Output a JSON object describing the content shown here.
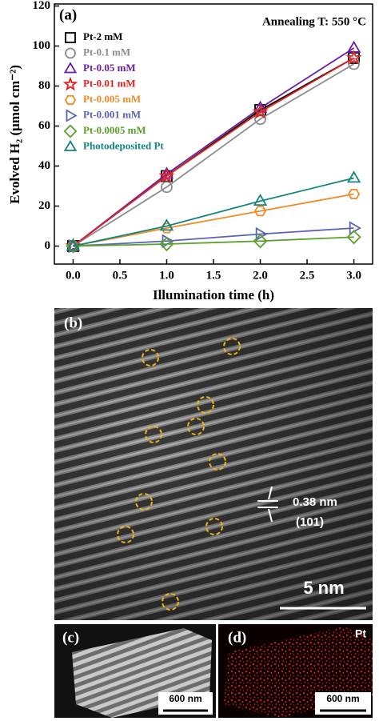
{
  "chart_data": {
    "type": "line",
    "panel_label": "(a)",
    "annotation": "Annealing T: 550 °C",
    "x_label": "Illumination time (h)",
    "y_label": "Evolved H₂ (μmol cm⁻²)",
    "x": [
      0,
      1,
      2,
      3
    ],
    "xlim": [
      -0.2,
      3.2
    ],
    "xticks": [
      {
        "value": 0,
        "label": "0.0"
      },
      {
        "value": 0.5,
        "label": "0.5"
      },
      {
        "value": 1,
        "label": "1.0"
      },
      {
        "value": 1.5,
        "label": "1.5"
      },
      {
        "value": 2,
        "label": "2.0"
      },
      {
        "value": 2.5,
        "label": "2.5"
      },
      {
        "value": 3,
        "label": "3.0"
      }
    ],
    "ylim": [
      -9,
      121
    ],
    "yticks": [
      0,
      20,
      40,
      60,
      80,
      100,
      120
    ],
    "legend": "upper left",
    "series": [
      {
        "name": "Pt-2 mM",
        "color": "#000000",
        "marker": "square",
        "values": [
          0,
          35,
          68,
          94
        ]
      },
      {
        "name": "Pt-0.1 mM",
        "color": "#8c8c8c",
        "marker": "circle",
        "values": [
          0,
          29.5,
          63.5,
          91
        ]
      },
      {
        "name": "Pt-0.05 mM",
        "color": "#6a1fa0",
        "marker": "triangle",
        "values": [
          0,
          36,
          69,
          99
        ]
      },
      {
        "name": "Pt-0.01 mM",
        "color": "#e32222",
        "marker": "star",
        "values": [
          0,
          35,
          67,
          94
        ]
      },
      {
        "name": "Pt-0.005 mM",
        "color": "#f08a24",
        "marker": "hexagon",
        "values": [
          0,
          9,
          17.5,
          26
        ]
      },
      {
        "name": "Pt-0.001 mM",
        "color": "#5a63b8",
        "marker": "triangle-right",
        "values": [
          0,
          2.5,
          6,
          9
        ]
      },
      {
        "name": "Pt-0.0005 mM",
        "color": "#5aa02c",
        "marker": "diamond",
        "values": [
          0,
          1,
          2.5,
          4.5
        ]
      },
      {
        "name": "Photodeposited Pt",
        "color": "#12857f",
        "marker": "triangle",
        "values": [
          0,
          10,
          22.5,
          34
        ]
      }
    ]
  },
  "panels": {
    "b": {
      "label": "(b)",
      "spacing": "0.38 nm",
      "plane": "(101)",
      "scale": "5 nm"
    },
    "c": {
      "label": "(c)",
      "scale": "600 nm"
    },
    "d": {
      "label": "(d)",
      "element": "Pt",
      "scale": "600 nm"
    }
  }
}
